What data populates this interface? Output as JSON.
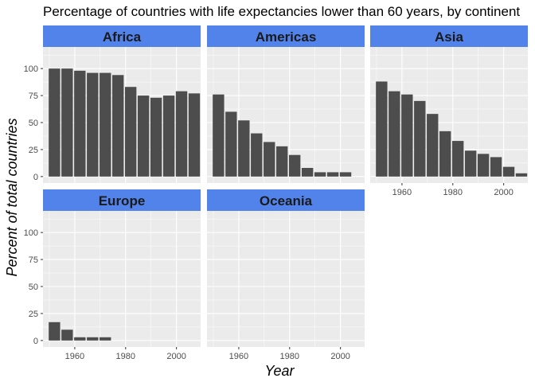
{
  "chart_data": {
    "type": "bar",
    "title": "Percentage of countries with life expectancies lower than 60 years, by continent",
    "xlabel": "Year",
    "ylabel": "Percent of total countries",
    "xlim": [
      1947.5,
      2009.5
    ],
    "ylim": [
      -6,
      120
    ],
    "x_ticks": [
      "1960",
      "1980",
      "2000"
    ],
    "y_ticks": [
      "0",
      "25",
      "50",
      "75",
      "100"
    ],
    "grid": true,
    "x": [
      1952,
      1957,
      1962,
      1967,
      1972,
      1977,
      1982,
      1987,
      1992,
      1997,
      2002,
      2007
    ],
    "facets": [
      {
        "name": "Africa",
        "values": [
          100,
          100,
          98,
          96,
          96,
          94,
          83,
          75,
          73,
          75,
          79,
          77
        ]
      },
      {
        "name": "Americas",
        "values": [
          76,
          60,
          52,
          40,
          32,
          28,
          20,
          8,
          4,
          4,
          4,
          0
        ]
      },
      {
        "name": "Asia",
        "values": [
          88,
          79,
          76,
          70,
          58,
          42,
          33,
          24,
          21,
          18,
          9,
          3
        ]
      },
      {
        "name": "Europe",
        "values": [
          17,
          10,
          3,
          3,
          3,
          0,
          0,
          0,
          0,
          0,
          0,
          0
        ]
      },
      {
        "name": "Oceania",
        "values": [
          0,
          0,
          0,
          0,
          0,
          0,
          0,
          0,
          0,
          0,
          0,
          0
        ]
      }
    ],
    "colors": {
      "panel": "#ebebeb",
      "grid_major": "#ffffff",
      "strip": "#5283eb",
      "bar": "#4d4d4d",
      "tick_text": "#4d4d4d",
      "tick_line": "#333333"
    }
  }
}
